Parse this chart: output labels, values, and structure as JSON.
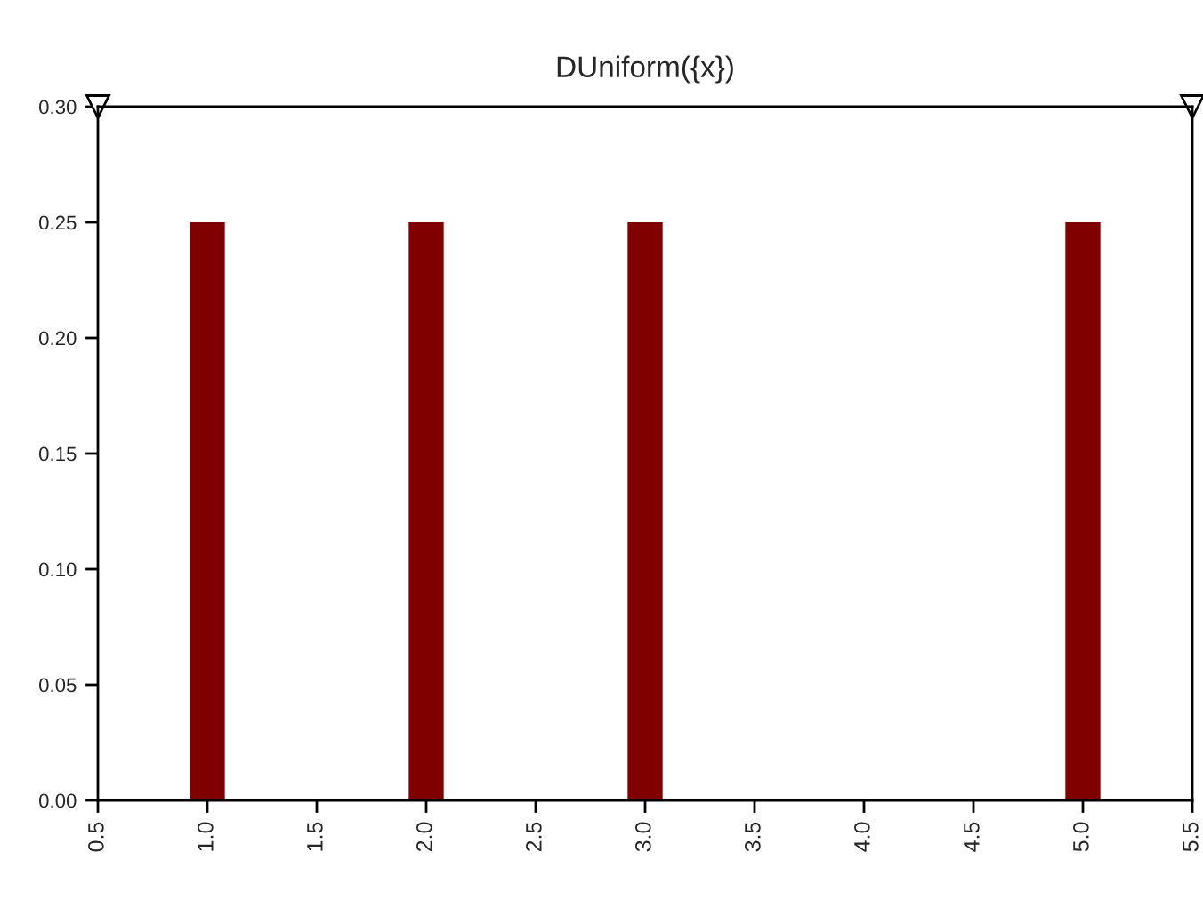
{
  "chart_data": {
    "type": "bar",
    "title": "DUniform({x})",
    "x": [
      1,
      2,
      3,
      5
    ],
    "values": [
      0.25,
      0.25,
      0.25,
      0.25
    ],
    "color": "#800000",
    "xlim": [
      0.5,
      5.5
    ],
    "xticks": [
      0.5,
      {
        "value": 1,
        "label": "1.0"
      },
      1.5,
      {
        "value": 2,
        "label": "2.0"
      },
      2.5,
      {
        "value": 3,
        "label": "3.0"
      },
      3.5,
      {
        "value": 4,
        "label": "4.0"
      },
      4.5,
      {
        "value": 5,
        "label": "5.0"
      },
      5.5
    ],
    "ylim": [
      0,
      0.3
    ],
    "yticks": [
      {
        "value": 0,
        "label": "0.00"
      },
      0.05,
      {
        "value": 0.1,
        "label": "0.10"
      },
      0.15,
      {
        "value": 0.2,
        "label": "0.20"
      },
      0.25,
      {
        "value": 0.3,
        "label": "0.30"
      }
    ],
    "grid": false
  }
}
